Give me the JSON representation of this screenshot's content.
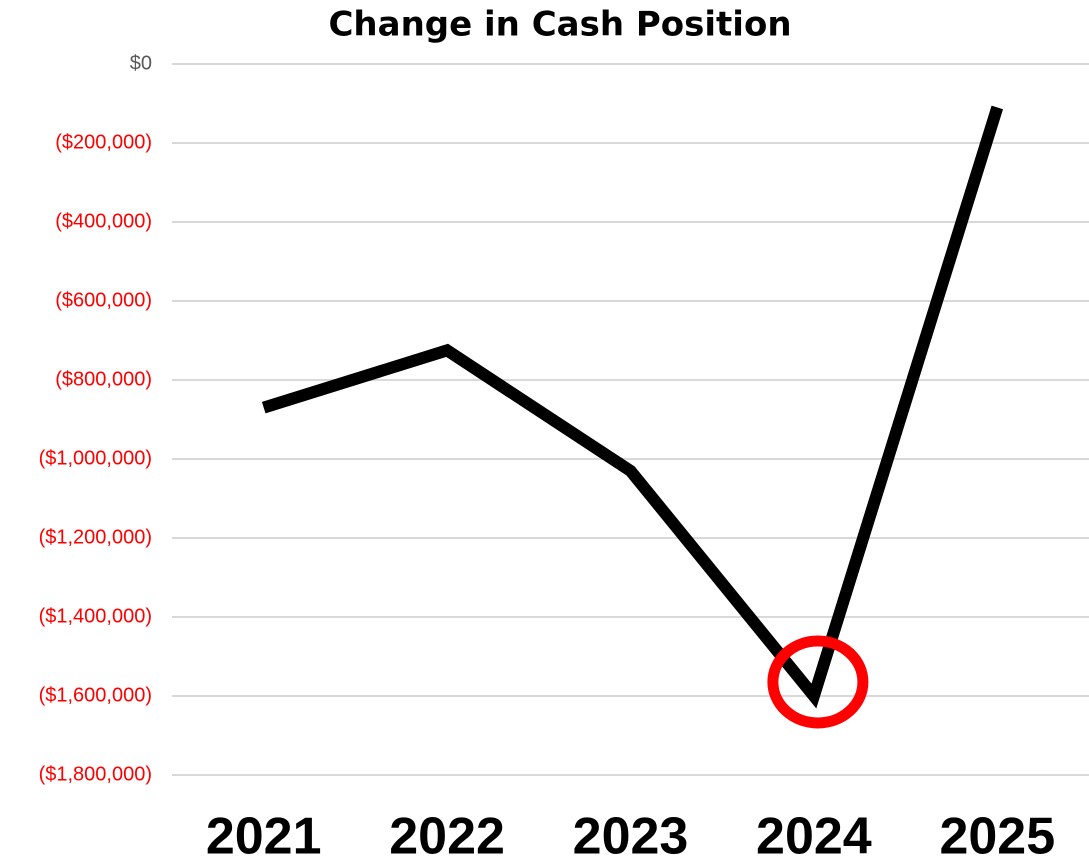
{
  "chart_data": {
    "type": "line",
    "title": "Change in Cash Position",
    "categories": [
      "2021",
      "2022",
      "2023",
      "2024",
      "2025"
    ],
    "series": [
      {
        "color": "#000000",
        "values": [
          -870000,
          -725000,
          -1030000,
          -1600000,
          -110000
        ]
      }
    ],
    "ylim": [
      -1800000,
      0
    ],
    "yticks": [
      {
        "value": 0,
        "label": "$0"
      },
      {
        "value": -200000,
        "label": "($200,000)"
      },
      {
        "value": -400000,
        "label": "($400,000)"
      },
      {
        "value": -600000,
        "label": "($600,000)"
      },
      {
        "value": -800000,
        "label": "($800,000)"
      },
      {
        "value": -1000000,
        "label": "($1,000,000)"
      },
      {
        "value": -1200000,
        "label": "($1,200,000)"
      },
      {
        "value": -1400000,
        "label": "($1,400,000)"
      },
      {
        "value": -1600000,
        "label": "($1,600,000)"
      },
      {
        "value": -1800000,
        "label": "($1,800,000)"
      }
    ],
    "grid": true,
    "grid_color": "#d9d9d9",
    "tick_color": "#595959",
    "negative_tick_color": "#ff0000",
    "highlight_index": 3,
    "highlight_color": "#ff0000"
  }
}
